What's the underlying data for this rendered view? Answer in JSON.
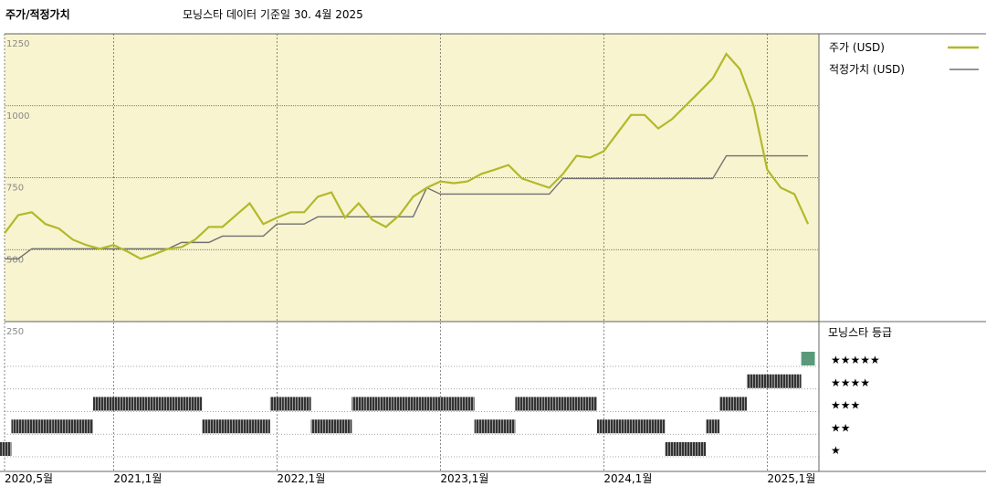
{
  "chart_data": {
    "type": "line",
    "title": "주가/적정가치",
    "subtitle": "모닝스타 데이터 기준일 30. 4월 2025",
    "x": [
      "2020-05",
      "2020-06",
      "2020-07",
      "2020-08",
      "2020-09",
      "2020-10",
      "2020-11",
      "2020-12",
      "2021-01",
      "2021-02",
      "2021-03",
      "2021-04",
      "2021-05",
      "2021-06",
      "2021-07",
      "2021-08",
      "2021-09",
      "2021-10",
      "2021-11",
      "2021-12",
      "2022-01",
      "2022-02",
      "2022-03",
      "2022-04",
      "2022-05",
      "2022-06",
      "2022-07",
      "2022-08",
      "2022-09",
      "2022-10",
      "2022-11",
      "2022-12",
      "2023-01",
      "2023-02",
      "2023-03",
      "2023-04",
      "2023-05",
      "2023-06",
      "2023-07",
      "2023-08",
      "2023-09",
      "2023-10",
      "2023-11",
      "2023-12",
      "2024-01",
      "2024-02",
      "2024-03",
      "2024-04",
      "2024-05",
      "2024-06",
      "2024-07",
      "2024-08",
      "2024-09",
      "2024-10",
      "2024-11",
      "2024-12",
      "2025-01",
      "2025-02",
      "2025-03",
      "2025-04"
    ],
    "xticks": [
      {
        "value": "2020-05",
        "label": "2020,5월"
      },
      {
        "value": "2021-01",
        "label": "2021,1월"
      },
      {
        "value": "2022-01",
        "label": "2022,1월"
      },
      {
        "value": "2023-01",
        "label": "2023,1월"
      },
      {
        "value": "2024-01",
        "label": "2024,1월"
      },
      {
        "value": "2025-01",
        "label": "2025,1월"
      }
    ],
    "ylim": [
      250,
      1250
    ],
    "yticks": [
      250,
      500,
      750,
      1000,
      1250
    ],
    "grid": true,
    "series": [
      {
        "name": "주가 (USD)",
        "color": "#b3b82b",
        "values": [
          557,
          620,
          630,
          589,
          573,
          535,
          516,
          503,
          516,
          494,
          468,
          484,
          503,
          509,
          535,
          579,
          579,
          620,
          661,
          589,
          611,
          630,
          630,
          684,
          699,
          611,
          661,
          604,
          579,
          620,
          684,
          715,
          737,
          731,
          737,
          763,
          778,
          794,
          747,
          731,
          715,
          763,
          826,
          820,
          842,
          905,
          968,
          968,
          921,
          953,
          1000,
          1047,
          1095,
          1180,
          1127,
          1000,
          778,
          715,
          693,
          589
        ]
      },
      {
        "name": "적정가치 (USD)",
        "color": "#707070",
        "values": [
          468,
          468,
          503,
          503,
          503,
          503,
          503,
          503,
          503,
          503,
          503,
          503,
          503,
          525,
          525,
          525,
          547,
          547,
          547,
          547,
          589,
          589,
          589,
          614,
          614,
          614,
          614,
          614,
          614,
          614,
          614,
          715,
          693,
          693,
          693,
          693,
          693,
          693,
          693,
          693,
          693,
          747,
          747,
          747,
          747,
          747,
          747,
          747,
          747,
          747,
          747,
          747,
          747,
          826,
          826,
          826,
          826,
          826,
          826,
          826
        ]
      }
    ],
    "ratings": {
      "title": "모닝스타 등급",
      "labels": [
        "★",
        "★★",
        "★★★",
        "★★★★",
        "★★★★★"
      ],
      "values": [
        1,
        2,
        2,
        2,
        2,
        2,
        2,
        3,
        3,
        3,
        3,
        3,
        3,
        3,
        3,
        2,
        2,
        2,
        2,
        2,
        3,
        3,
        3,
        2,
        2,
        2,
        3,
        3,
        3,
        3,
        3,
        3,
        3,
        3,
        3,
        2,
        2,
        2,
        3,
        3,
        3,
        3,
        3,
        3,
        2,
        2,
        2,
        2,
        2,
        1,
        1,
        1,
        2,
        3,
        3,
        4,
        4,
        4,
        4,
        5
      ]
    }
  }
}
